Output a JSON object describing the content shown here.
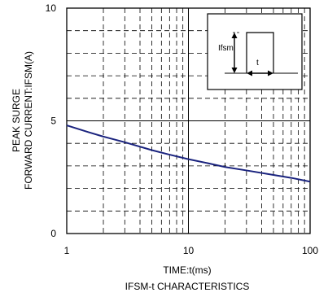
{
  "chart_data": {
    "type": "line",
    "title": "IFSM-t CHARACTERISTICS",
    "xlabel": "TIME:t(ms)",
    "ylabel": [
      "PEAK SURGE",
      "FORWARD CURRENT:IFSM(A)"
    ],
    "x_scale": "log",
    "xlim": [
      1,
      100
    ],
    "ylim": [
      0,
      10
    ],
    "x_ticks": [
      {
        "value": 1,
        "label": "1"
      },
      {
        "value": 10,
        "label": "10"
      },
      {
        "value": 100,
        "label": "100"
      }
    ],
    "y_ticks": [
      {
        "value": 0,
        "label": "0"
      },
      {
        "value": 5,
        "label": "5"
      },
      {
        "value": 10,
        "label": "10"
      }
    ],
    "grid": true,
    "series": [
      {
        "color": "#1a237e",
        "x": [
          1,
          1.5,
          2,
          3,
          5,
          7,
          10,
          15,
          20,
          30,
          50,
          70,
          100
        ],
        "y": [
          4.8,
          4.5,
          4.3,
          4.05,
          3.7,
          3.5,
          3.3,
          3.1,
          2.95,
          2.8,
          2.6,
          2.47,
          2.3
        ]
      }
    ],
    "inset": {
      "labels": {
        "current": "Ifsm",
        "time": "t"
      }
    }
  }
}
